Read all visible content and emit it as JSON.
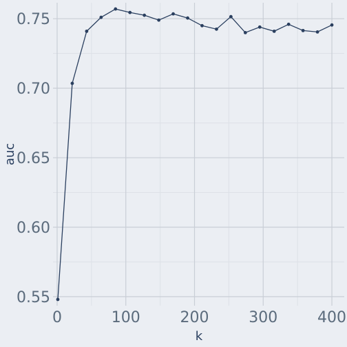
{
  "chart_data": {
    "type": "line",
    "title": "",
    "xlabel": "k",
    "ylabel": "auc",
    "xlim": [
      -6,
      418
    ],
    "ylim": [
      0.5435,
      0.7615
    ],
    "x_ticks": [
      0,
      100,
      200,
      300,
      400
    ],
    "x_tick_labels": [
      "0",
      "100",
      "200",
      "300",
      "400"
    ],
    "y_ticks": [
      0.55,
      0.6,
      0.65,
      0.7,
      0.75
    ],
    "y_tick_labels": [
      "0.55",
      "0.60",
      "0.65",
      "0.70",
      "0.75"
    ],
    "grid": true,
    "legend": "none",
    "colors": {
      "background": "#ebeef3",
      "grid_major": "#c9ced6",
      "grid_minor": "#dde1e7",
      "line": "#2a3f5f"
    },
    "series": [
      {
        "x": [
          1,
          22,
          43,
          64,
          85,
          106,
          127,
          148,
          169,
          190,
          211,
          232,
          253,
          274,
          295,
          316,
          337,
          358,
          379,
          400
        ],
        "y": [
          0.548,
          0.7035,
          0.741,
          0.751,
          0.757,
          0.7545,
          0.7525,
          0.749,
          0.7535,
          0.7505,
          0.745,
          0.7425,
          0.7515,
          0.74,
          0.744,
          0.741,
          0.746,
          0.7415,
          0.7405,
          0.7455
        ]
      }
    ]
  }
}
